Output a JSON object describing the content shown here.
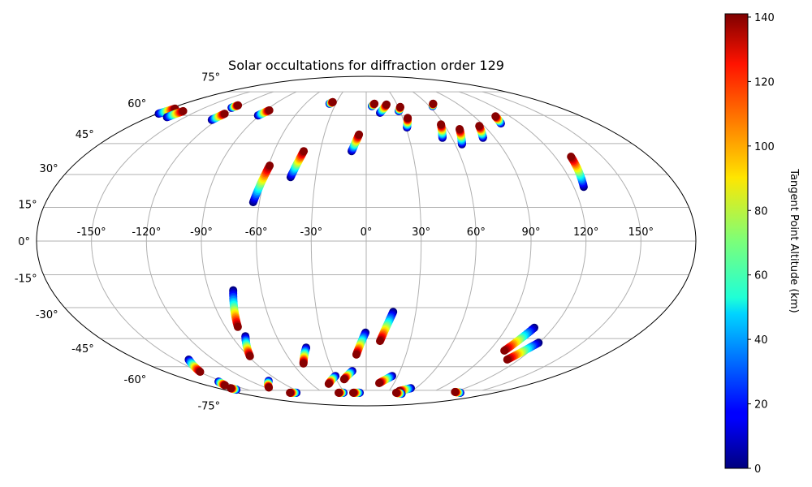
{
  "chart_data": {
    "type": "scatter",
    "projection": "mollweide",
    "title": "Solar occultations for diffraction order 129",
    "lon_ticks": [
      -150,
      -120,
      -90,
      -60,
      -30,
      0,
      30,
      60,
      90,
      120,
      150
    ],
    "lon_tick_labels": [
      "-150°",
      "-120°",
      "-90°",
      "-60°",
      "-30°",
      "0°",
      "30°",
      "60°",
      "90°",
      "120°",
      "150°"
    ],
    "lat_ticks": [
      75,
      60,
      45,
      30,
      15,
      0,
      -15,
      -30,
      -45,
      -60,
      -75
    ],
    "lat_tick_labels": [
      "75°",
      "60°",
      "45°",
      "30°",
      "15°",
      "0°",
      "-15°",
      "-30°",
      "-45°",
      "-60°",
      "-75°"
    ],
    "grid": true,
    "colorbar": {
      "label": "Tangent Point Altitude (km)",
      "colormap": "jet",
      "range": [
        0,
        141
      ],
      "ticks": [
        0,
        20,
        40,
        60,
        80,
        100,
        120,
        140
      ],
      "tick_labels": [
        "0",
        "20",
        "40",
        "60",
        "80",
        "100",
        "120",
        "140"
      ]
    },
    "altitude_range_km": [
      0,
      140
    ],
    "points_per_track": 24,
    "tracks": [
      {
        "start": [
          -178.6,
          61
        ],
        "end": [
          -175.4,
          64
        ]
      },
      {
        "start": [
          -165,
          59
        ],
        "end": [
          -162.5,
          62.5
        ]
      },
      {
        "start": [
          -124.5,
          57.5
        ],
        "end": [
          -121.8,
          61
        ]
      },
      {
        "start": [
          -125,
          64.5
        ],
        "end": [
          -123.5,
          66
        ]
      },
      {
        "start": [
          -91.3,
          60
        ],
        "end": [
          -86.9,
          63
        ]
      },
      {
        "start": [
          -36.3,
          67
        ],
        "end": [
          -34,
          68
        ]
      },
      {
        "start": [
          -9.5,
          41.2
        ],
        "end": [
          -5.2,
          49.6
        ]
      },
      {
        "start": [
          -44.8,
          28.8
        ],
        "end": [
          -40.7,
          41.2
        ]
      },
      {
        "start": [
          -63.5,
          17.3
        ],
        "end": [
          -59.3,
          34.2
        ]
      },
      {
        "start": [
          5.4,
          65.5
        ],
        "end": [
          8.1,
          67
        ]
      },
      {
        "start": [
          12,
          61.5
        ],
        "end": [
          19.8,
          66.5
        ]
      },
      {
        "start": [
          28.9,
          62.5
        ],
        "end": [
          32,
          65
        ]
      },
      {
        "start": [
          30.7,
          53.3
        ],
        "end": [
          34.1,
          58.6
        ]
      },
      {
        "start": [
          63.2,
          65.5
        ],
        "end": [
          66.1,
          67
        ]
      },
      {
        "start": [
          53.4,
          47.9
        ],
        "end": [
          57.8,
          55
        ]
      },
      {
        "start": [
          64.6,
          44.6
        ],
        "end": [
          69.5,
          52.5
        ]
      },
      {
        "start": [
          81.8,
          47.9
        ],
        "end": [
          86.3,
          54.2
        ]
      },
      {
        "start": [
          105,
          55.5
        ],
        "end": [
          108,
          59.5
        ]
      },
      {
        "start": [
          125.8,
          24.3
        ],
        "end": [
          130.2,
          38.5
        ]
      },
      {
        "start": [
          -76.1,
          -22
        ],
        "end": [
          -82.1,
          -39.2
        ]
      },
      {
        "start": [
          -80.8,
          -43.8
        ],
        "end": [
          -88.8,
          -54.2
        ]
      },
      {
        "start": [
          -139.5,
          -56
        ],
        "end": [
          -149,
          -63
        ]
      },
      {
        "start": [
          -154.3,
          -69
        ],
        "end": [
          -159.7,
          -71.5
        ]
      },
      {
        "start": [
          -164,
          -74.5
        ],
        "end": [
          -164.5,
          -73.5
        ]
      },
      {
        "start": [
          -43,
          -49.6
        ],
        "end": [
          -51.2,
          -58.2
        ]
      },
      {
        "start": [
          -100.5,
          -68.5
        ],
        "end": [
          -116,
          -73
        ]
      },
      {
        "start": [
          -97.7,
          -76.8
        ],
        "end": [
          -106.8,
          -76.8
        ]
      },
      {
        "start": [
          -29.3,
          -65.5
        ],
        "end": [
          -41,
          -70.5
        ]
      },
      {
        "start": [
          -12.3,
          -62.5
        ],
        "end": [
          -22.1,
          -67.5
        ]
      },
      {
        "start": [
          16.3,
          -32
        ],
        "end": [
          9.5,
          -46.2
        ]
      },
      {
        "start": [
          -0.5,
          -42
        ],
        "end": [
          -7.4,
          -53.3
        ]
      },
      {
        "start": [
          -31.8,
          -76.8
        ],
        "end": [
          -38.6,
          -76.8
        ]
      },
      {
        "start": [
          -9.1,
          -76.8
        ],
        "end": [
          -18.2,
          -76.8
        ]
      },
      {
        "start": [
          24.7,
          -65.5
        ],
        "end": [
          14,
          -70
        ]
      },
      {
        "start": [
          54.2,
          -73.5
        ],
        "end": [
          43.5,
          -75.5
        ]
      },
      {
        "start": [
          51.3,
          -77.5
        ],
        "end": [
          42,
          -76.8
        ]
      },
      {
        "start": [
          131.8,
          -76.8
        ],
        "end": [
          120.8,
          -76.2
        ]
      },
      {
        "start": [
          107.9,
          -39.6
        ],
        "end": [
          101,
          -51.2
        ]
      },
      {
        "start": [
          119.6,
          -47.1
        ],
        "end": [
          110.8,
          -56
        ]
      }
    ]
  }
}
